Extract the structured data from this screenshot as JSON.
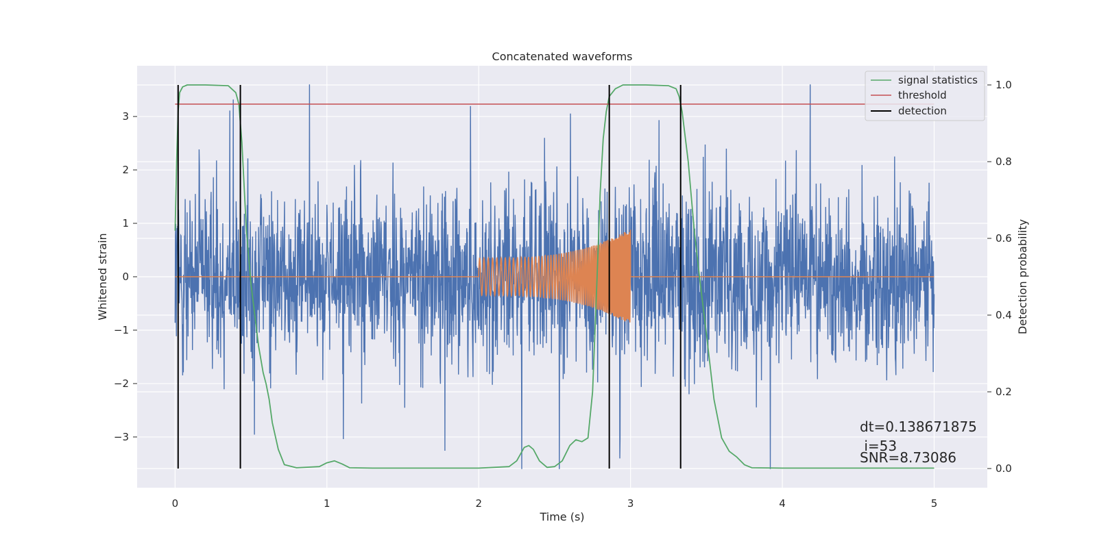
{
  "chart_data": {
    "type": "line",
    "title": "Concatenated waveforms",
    "xlabel": "Time (s)",
    "ylabel_left": "Whitened strain",
    "ylabel_right": "Detection probability",
    "xlim": [
      -0.25,
      5.35
    ],
    "ylim_left": [
      -3.95,
      3.95
    ],
    "ylim_right": [
      -0.05,
      1.05
    ],
    "xticks": [
      0,
      1,
      2,
      3,
      4,
      5
    ],
    "xtick_labels": [
      "0",
      "1",
      "2",
      "3",
      "4",
      "5"
    ],
    "yticks_left": [
      -3,
      -2,
      -1,
      0,
      1,
      2,
      3
    ],
    "ytick_labels_left": [
      "−3",
      "−2",
      "−1",
      "0",
      "1",
      "2",
      "3"
    ],
    "yticks_right": [
      0.0,
      0.2,
      0.4,
      0.6,
      0.8,
      1.0
    ],
    "ytick_labels_right": [
      "0.0",
      "0.2",
      "0.4",
      "0.6",
      "0.8",
      "1.0"
    ],
    "grid": true,
    "legend_position": "top-right",
    "series": [
      {
        "axis": "left",
        "color": "#4c72b0",
        "description": "whitened strain noise, approx. ±1.5 typical, peaks to ±3.6",
        "x_range": [
          0,
          5
        ],
        "typical_amplitude": 1.4,
        "peak_amplitude": 3.6
      },
      {
        "axis": "left",
        "color": "#dd8452",
        "description": "injected chirp waveform, zero outside 2.0–3.0 s",
        "x_range": [
          0,
          5
        ],
        "chirp_start": 2.0,
        "chirp_end": 3.0,
        "chirp_amp_start": 0.35,
        "chirp_amp_end": 0.9
      },
      {
        "name": "signal statistics",
        "axis": "right",
        "color": "#55a868",
        "x": [
          0.0,
          0.01,
          0.02,
          0.03,
          0.05,
          0.08,
          0.2,
          0.35,
          0.4,
          0.42,
          0.44,
          0.47,
          0.5,
          0.55,
          0.58,
          0.6,
          0.62,
          0.64,
          0.68,
          0.72,
          0.8,
          0.95,
          1.0,
          1.05,
          1.1,
          1.15,
          1.3,
          1.6,
          2.0,
          2.2,
          2.25,
          2.3,
          2.33,
          2.36,
          2.4,
          2.45,
          2.5,
          2.55,
          2.6,
          2.64,
          2.68,
          2.72,
          2.75,
          2.78,
          2.8,
          2.82,
          2.84,
          2.86,
          2.9,
          2.95,
          3.1,
          3.25,
          3.3,
          3.32,
          3.34,
          3.38,
          3.42,
          3.46,
          3.5,
          3.55,
          3.6,
          3.65,
          3.7,
          3.75,
          3.8,
          4.0,
          4.5,
          5.0
        ],
        "y": [
          0.62,
          0.8,
          0.93,
          0.98,
          0.995,
          1.0,
          1.0,
          0.998,
          0.98,
          0.95,
          0.85,
          0.62,
          0.48,
          0.32,
          0.25,
          0.22,
          0.18,
          0.12,
          0.05,
          0.01,
          0.002,
          0.005,
          0.015,
          0.02,
          0.012,
          0.002,
          0.001,
          0.001,
          0.001,
          0.005,
          0.02,
          0.055,
          0.06,
          0.05,
          0.02,
          0.003,
          0.005,
          0.02,
          0.06,
          0.075,
          0.07,
          0.08,
          0.2,
          0.5,
          0.72,
          0.86,
          0.93,
          0.97,
          0.99,
          1.0,
          1.0,
          0.998,
          0.99,
          0.97,
          0.93,
          0.8,
          0.62,
          0.48,
          0.35,
          0.18,
          0.08,
          0.045,
          0.03,
          0.01,
          0.002,
          0.001,
          0.001,
          0.001
        ]
      },
      {
        "name": "threshold",
        "axis": "right",
        "color": "#c44e52",
        "x": [
          0,
          5
        ],
        "y": [
          0.95,
          0.95
        ]
      },
      {
        "name": "detection",
        "axis": "right",
        "color": "#000000",
        "type": "vlines",
        "x": [
          0.02,
          0.43,
          2.86,
          3.33
        ],
        "ymin": 0.0,
        "ymax": 1.0
      }
    ],
    "annotations": [
      {
        "text": "dt=0.138671875",
        "x": 4.5,
        "y_right": 0.1
      },
      {
        "text": " i=53",
        "x": 4.5,
        "y_right": 0.065
      },
      {
        "text": "SNR=8.73086",
        "x": 4.5,
        "y_right": 0.032
      }
    ]
  },
  "colors": {
    "plot_background": "#eaeaf2",
    "grid": "#ffffff"
  }
}
